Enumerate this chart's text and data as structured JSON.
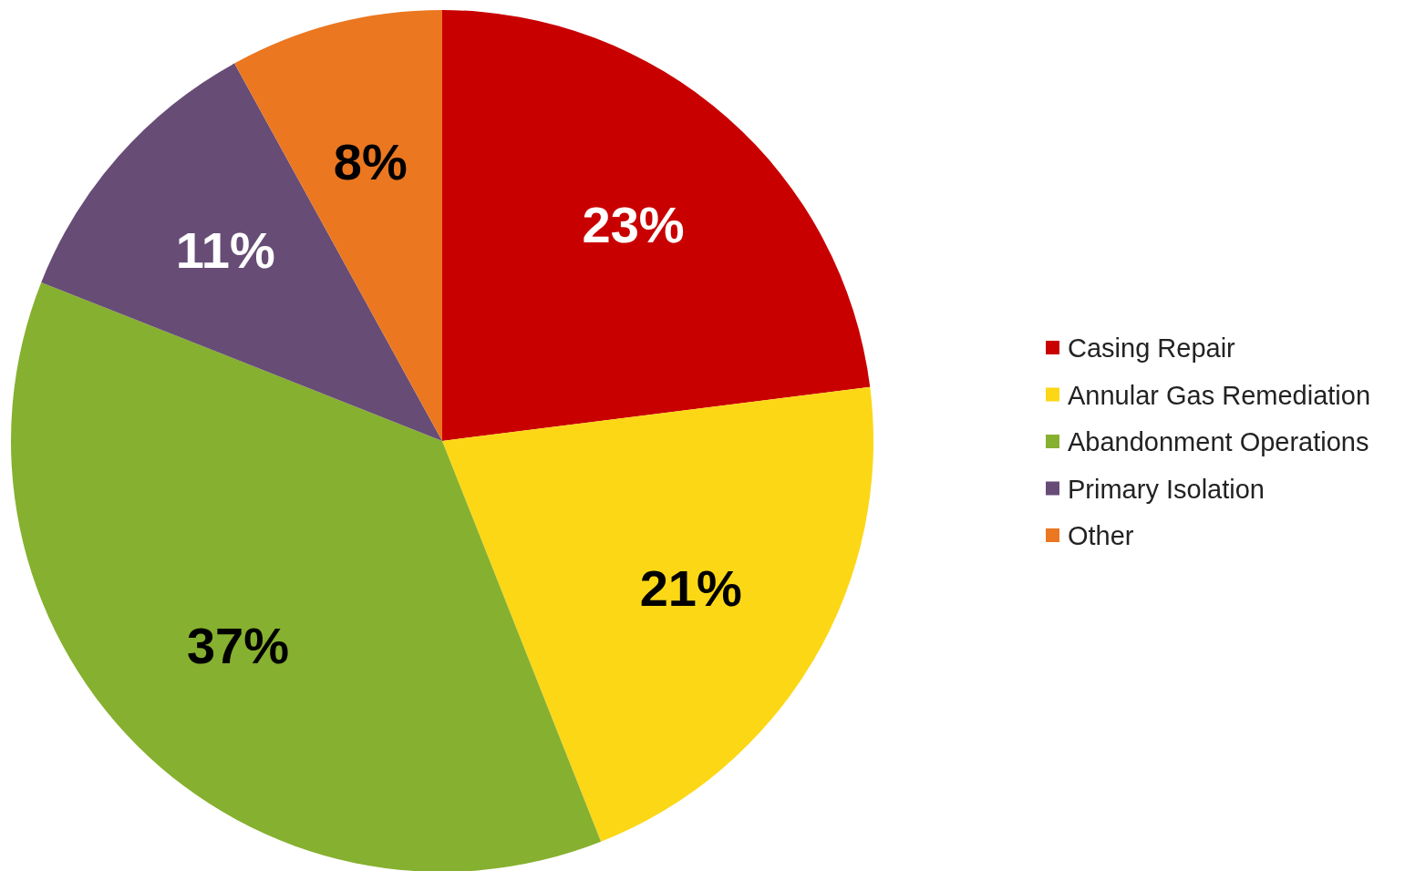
{
  "chart_data": {
    "type": "pie",
    "categories": [
      "Casing Repair",
      "Annular Gas Remediation",
      "Abandonment Operations",
      "Primary Isolation",
      "Other"
    ],
    "values": [
      23,
      21,
      37,
      11,
      8
    ],
    "colors": [
      "#c90000",
      "#fcd716",
      "#86b02f",
      "#674c76",
      "#eb7720"
    ],
    "value_labels": [
      "23%",
      "21%",
      "37%",
      "11%",
      "8%"
    ],
    "legend": "right"
  }
}
